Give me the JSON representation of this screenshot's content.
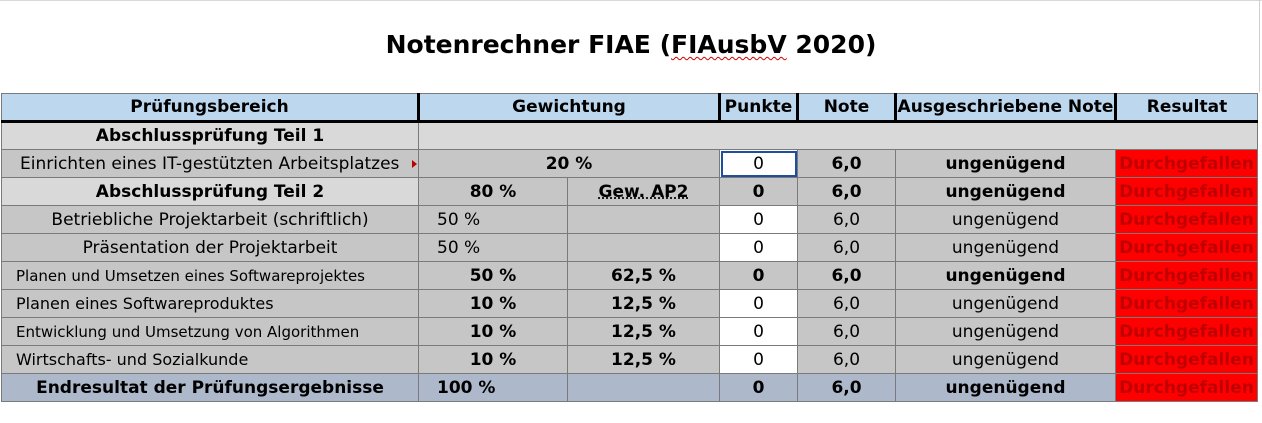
{
  "title": "Notenrechner FIAE (FIAusbV 2020)",
  "title_main": "Notenrechner FIAE (",
  "title_squiggle": "FIAusbV",
  "title_end": " 2020)",
  "headers": {
    "bereich": "Prüfungsbereich",
    "gewichtung": "Gewichtung",
    "punkte": "Punkte",
    "note": "Note",
    "ausgeschrieben": "Ausgeschriebene Note",
    "resultat": "Resultat"
  },
  "rows": {
    "ap1_heading": "Abschlussprüfung Teil 1",
    "ap1": {
      "label": "Einrichten eines IT-gestützten Arbeitsplatzes",
      "gew": "20 %",
      "punkte": "0",
      "note": "6,0",
      "ausgeschrieben": "ungenügend",
      "resultat": "Durchgefallen"
    },
    "ap2": {
      "label": "Abschlussprüfung Teil 2",
      "gew": "80 %",
      "gew2": "Gew. AP2",
      "punkte": "0",
      "note": "6,0",
      "ausgeschrieben": "ungenügend",
      "resultat": "Durchgefallen"
    },
    "projekt": {
      "label": "Betriebliche Projektarbeit (schriftlich)",
      "gew": "50 %",
      "punkte": "0",
      "note": "6,0",
      "ausgeschrieben": "ungenügend",
      "resultat": "Durchgefallen"
    },
    "praes": {
      "label": "Präsentation der Projektarbeit",
      "gew": "50 %",
      "punkte": "0",
      "note": "6,0",
      "ausgeschrieben": "ungenügend",
      "resultat": "Durchgefallen"
    },
    "planen_sw": {
      "label": "Planen und Umsetzen eines Softwareprojektes",
      "gew": "50 %",
      "gew2": "62,5 %",
      "punkte": "0",
      "note": "6,0",
      "ausgeschrieben": "ungenügend",
      "resultat": "Durchgefallen"
    },
    "planen_prod": {
      "label": "Planen eines Softwareproduktes",
      "gew": "10 %",
      "gew2": "12,5 %",
      "punkte": "0",
      "note": "6,0",
      "ausgeschrieben": "ungenügend",
      "resultat": "Durchgefallen"
    },
    "algo": {
      "label": "Entwicklung und Umsetzung von Algorithmen",
      "gew": "10 %",
      "gew2": "12,5 %",
      "punkte": "0",
      "note": "6,0",
      "ausgeschrieben": "ungenügend",
      "resultat": "Durchgefallen"
    },
    "wiso": {
      "label": "Wirtschafts- und Sozialkunde",
      "gew": "10 %",
      "gew2": "12,5 %",
      "punkte": "0",
      "note": "6,0",
      "ausgeschrieben": "ungenügend",
      "resultat": "Durchgefallen"
    },
    "end": {
      "label": "Endresultat der Prüfungsergebnisse",
      "gew": "100 %",
      "punkte": "0",
      "note": "6,0",
      "ausgeschrieben": "ungenügend",
      "resultat": "Durchgefallen"
    }
  },
  "colors": {
    "header_bg": "#bdd7ee",
    "fail_bg": "#ff0000",
    "fail_text": "#c00000",
    "total_bg": "#adb9ca",
    "row_bg": "#c6c6c6",
    "section_bg": "#d9d9d9"
  }
}
